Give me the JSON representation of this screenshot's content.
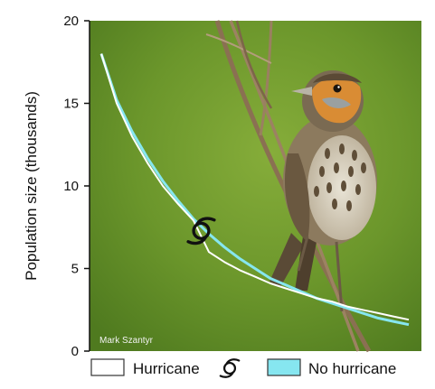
{
  "photo": {
    "credit": "Mark Szantyr",
    "background_color": "#6e9a2c"
  },
  "chart_data": {
    "type": "line",
    "title": "",
    "xlabel": "",
    "ylabel": "Population size (thousands)",
    "ylim": [
      0,
      20
    ],
    "yticks": [
      0,
      5,
      10,
      15,
      20
    ],
    "x": [
      0,
      1,
      2,
      3,
      4,
      5,
      6,
      7,
      8,
      9,
      10,
      11,
      12,
      13,
      14,
      15,
      16,
      17,
      18,
      19,
      20
    ],
    "series": [
      {
        "name": "Hurricane",
        "color": "#ffffff",
        "values": [
          18.0,
          15.0,
          13.0,
          11.4,
          10.0,
          8.9,
          7.9,
          6.0,
          5.4,
          4.9,
          4.5,
          4.1,
          3.8,
          3.5,
          3.2,
          3.0,
          2.7,
          2.5,
          2.3,
          2.1,
          1.9
        ]
      },
      {
        "name": "No hurricane",
        "color": "#86e6f0",
        "values": [
          18.0,
          15.2,
          13.3,
          11.7,
          10.3,
          9.1,
          8.0,
          7.1,
          6.3,
          5.6,
          5.0,
          4.4,
          4.0,
          3.6,
          3.2,
          2.9,
          2.6,
          2.3,
          2.0,
          1.8,
          1.6
        ]
      }
    ],
    "legend_position": "bottom",
    "hurricane_event_index": 7
  }
}
